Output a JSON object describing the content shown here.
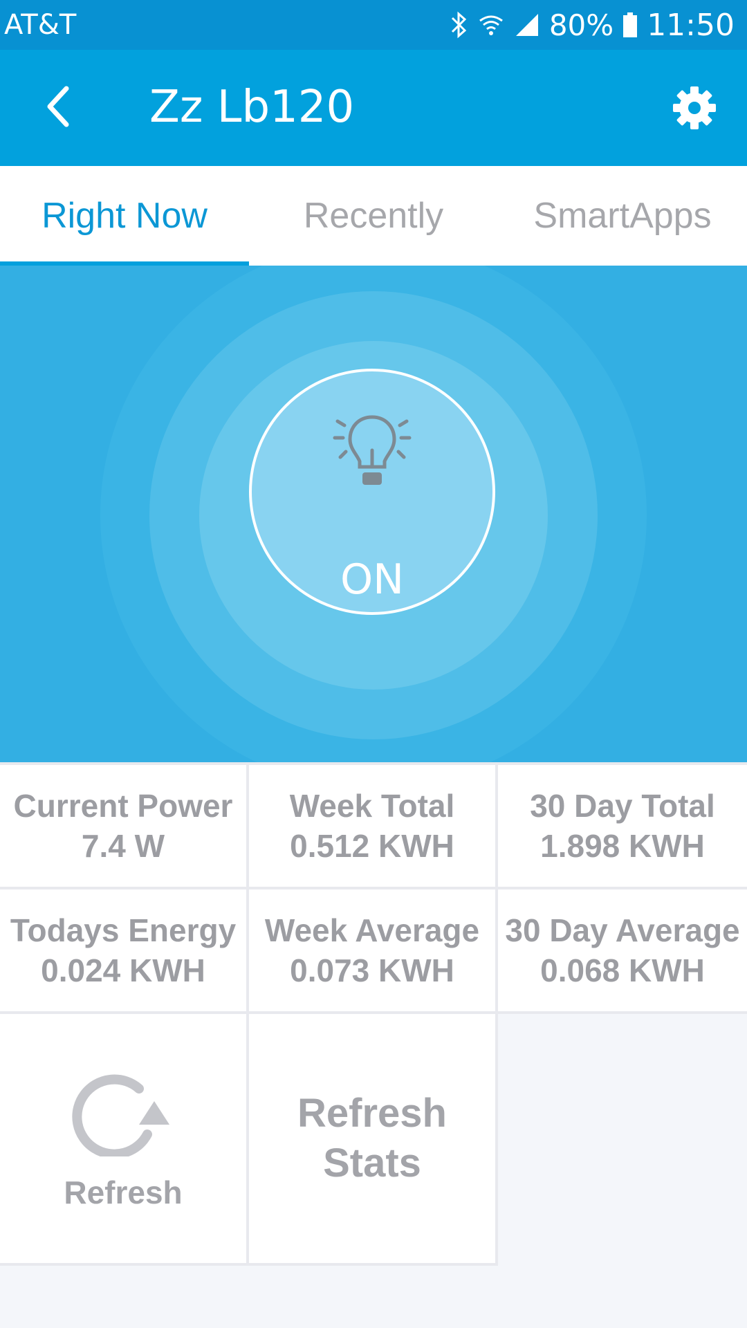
{
  "status_bar": {
    "carrier": "AT&T",
    "battery": "80%",
    "time": "11:50",
    "icons": [
      "bluetooth-icon",
      "wifi-icon",
      "signal-icon",
      "battery-icon"
    ]
  },
  "app_bar": {
    "title": "Zz Lb120",
    "back_icon": "chevron-left-icon",
    "settings_icon": "gear-icon",
    "color": "#02a1dd"
  },
  "tabs": [
    {
      "label": "Right Now",
      "active": true
    },
    {
      "label": "Recently",
      "active": false
    },
    {
      "label": "SmartApps",
      "active": false
    }
  ],
  "device": {
    "state": "ON",
    "icon": "lightbulb-icon",
    "accent": "#33afe3"
  },
  "stats": [
    [
      {
        "label": "Current Power",
        "value": "7.4 W"
      },
      {
        "label": "Week Total",
        "value": "0.512 KWH"
      },
      {
        "label": "30 Day Total",
        "value": "1.898 KWH"
      }
    ],
    [
      {
        "label": "Todays Energy",
        "value": "0.024 KWH"
      },
      {
        "label": "Week Average",
        "value": "0.073 KWH"
      },
      {
        "label": "30 Day Average",
        "value": "0.068 KWH"
      }
    ]
  ],
  "actions": {
    "refresh_label": "Refresh",
    "refresh_icon": "refresh-icon",
    "refresh_stats_label": "Refresh Stats"
  }
}
